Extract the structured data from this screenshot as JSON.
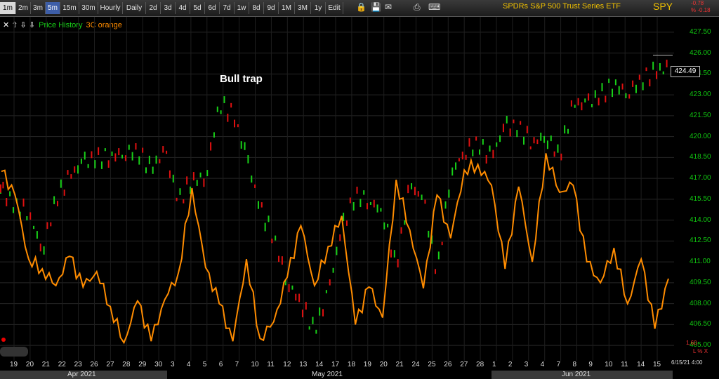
{
  "toolbar": {
    "timeframes": [
      {
        "label": "1m",
        "state": "active"
      },
      {
        "label": "2m",
        "state": ""
      },
      {
        "label": "3m",
        "state": ""
      },
      {
        "label": "5m",
        "state": "sel5"
      },
      {
        "label": "15m",
        "state": ""
      },
      {
        "label": "30m",
        "state": ""
      },
      {
        "label": "Hourly",
        "state": ""
      },
      {
        "label": "Daily",
        "state": ""
      },
      {
        "label": "2d",
        "state": ""
      },
      {
        "label": "3d",
        "state": ""
      },
      {
        "label": "4d",
        "state": ""
      },
      {
        "label": "5d",
        "state": ""
      },
      {
        "label": "6d",
        "state": ""
      },
      {
        "label": "7d",
        "state": ""
      },
      {
        "label": "1w",
        "state": ""
      },
      {
        "label": "8d",
        "state": ""
      },
      {
        "label": "9d",
        "state": ""
      },
      {
        "label": "1M",
        "state": ""
      },
      {
        "label": "3M",
        "state": ""
      },
      {
        "label": "1y",
        "state": ""
      },
      {
        "label": "Edit",
        "state": ""
      }
    ],
    "icons": [
      "lock-icon",
      "save-icon",
      "email-icon",
      "print-icon",
      "keyboard-icon"
    ]
  },
  "header": {
    "title": "SPDRs S&P 500 Trust Series ETF",
    "ticker": "SPY",
    "change_abs": "-0.78",
    "change_pct": "% -0.18"
  },
  "legend": {
    "arrows": "✕ ⇧ ⇩ ⇩",
    "series1": "Price History",
    "series2": "3C orange",
    "series1_color": "#18d018",
    "series2_color": "#ff8c00"
  },
  "annotation": "Bull trap",
  "price_box": "424.49",
  "right_axis_extra": [
    "1.60",
    "L % X"
  ],
  "date_stamp": "6/15/21 4:00",
  "chart_data": {
    "type": "line",
    "ylim": [
      403.9,
      428.6
    ],
    "y_ticks": [
      "427.50",
      "426.00",
      "424.50",
      "423.00",
      "421.50",
      "420.00",
      "418.50",
      "417.00",
      "415.50",
      "414.00",
      "412.50",
      "411.00",
      "409.50",
      "408.00",
      "406.50",
      "405.00"
    ],
    "x_tick_labels": [
      "19",
      "20",
      "21",
      "22",
      "23",
      "26",
      "27",
      "28",
      "29",
      "30",
      "3",
      "4",
      "5",
      "6",
      "7",
      "10",
      "11",
      "12",
      "13",
      "14",
      "17",
      "18",
      "19",
      "20",
      "21",
      "24",
      "25",
      "26",
      "27",
      "28",
      "1",
      "2",
      "3",
      "4",
      "7",
      "8",
      "9",
      "10",
      "11",
      "14",
      "15"
    ],
    "months": [
      "Apr 2021",
      "May 2021",
      "Jun 2021"
    ],
    "series": [
      {
        "name": "Price History",
        "kind": "candles",
        "values": [
          416.2,
          415.0,
          414.6,
          411.8,
          415.5,
          417.1,
          418.2,
          418.4,
          418.6,
          418.8,
          419.0,
          417.6,
          419.0,
          415.3,
          416.9,
          417.0,
          422.4,
          421.6,
          418.6,
          414.8,
          412.8,
          409.5,
          408.1,
          406.0,
          408.8,
          413.4,
          415.8,
          415.4,
          414.6,
          410.6,
          416.5,
          415.5,
          410.1,
          417.3,
          418.9,
          419.5,
          418.5,
          420.8,
          420.6,
          419.6,
          420.0,
          418.6,
          422.3,
          422.4,
          422.9,
          423.8,
          423.1,
          424.1,
          424.6,
          425.0
        ]
      },
      {
        "name": "3C orange",
        "kind": "line",
        "values": [
          417.5,
          415.8,
          411.2,
          410.5,
          409.3,
          411.4,
          409.2,
          410.3,
          407.8,
          405.2,
          408.2,
          405.3,
          408.3,
          410.2,
          416.3,
          410.6,
          408.0,
          405.3,
          411.2,
          405.5,
          406.7,
          409.9,
          413.6,
          409.3,
          412.1,
          414.3,
          406.5,
          409.2,
          407.0,
          416.9,
          413.3,
          409.1,
          415.8,
          412.7,
          417.6,
          418.0,
          416.5,
          410.5,
          416.4,
          411.0,
          418.8,
          416.0,
          416.5,
          411.0,
          409.5,
          412.0,
          408.0,
          411.2,
          406.2,
          409.8
        ]
      }
    ]
  }
}
